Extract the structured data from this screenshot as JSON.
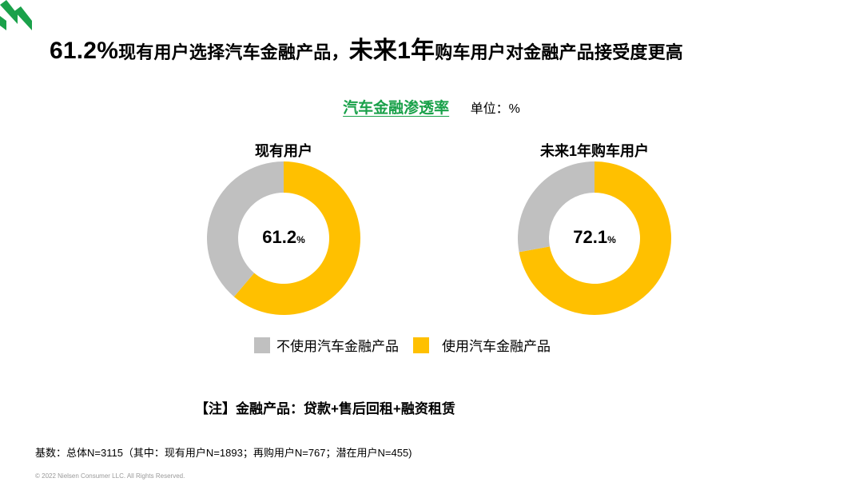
{
  "colors": {
    "gray": "#c0c0c0",
    "yellow": "#ffc000",
    "green": "#1aa14a",
    "black": "#000000"
  },
  "header": {
    "logo_icon": "nielsen-green-chevron-icon",
    "title_part1": "61.2%",
    "title_part2": "现有用户选择汽车金融产品，",
    "title_part3": "未来1年",
    "title_part4": "购车用户对金融产品接受度更高"
  },
  "chart_header": {
    "title": "汽车金融渗透率",
    "unit": "单位：%"
  },
  "chart_data": [
    {
      "type": "pie",
      "title": "现有用户",
      "center_label": "61.2",
      "center_unit": "%",
      "categories": [
        "不使用汽车金融产品",
        "使用汽车金融产品"
      ],
      "values": [
        38.8,
        61.2
      ],
      "colors": [
        "#c0c0c0",
        "#ffc000"
      ]
    },
    {
      "type": "pie",
      "title": "未来1年购车用户",
      "center_label": "72.1",
      "center_unit": "%",
      "categories": [
        "不使用汽车金融产品",
        "使用汽车金融产品"
      ],
      "values": [
        27.9,
        72.1
      ],
      "colors": [
        "#c0c0c0",
        "#ffc000"
      ]
    }
  ],
  "legend": {
    "not_using": "不使用汽车金融产品",
    "using": "使用汽车金融产品"
  },
  "note": "【注】金融产品：贷款+售后回租+融资租赁",
  "base": "基数：总体N=3115（其中：现有用户N=1893；再购用户N=767；潜在用户N=455)",
  "copyright": "© 2022 Nielsen Consumer LLC. All Rights Reserved."
}
